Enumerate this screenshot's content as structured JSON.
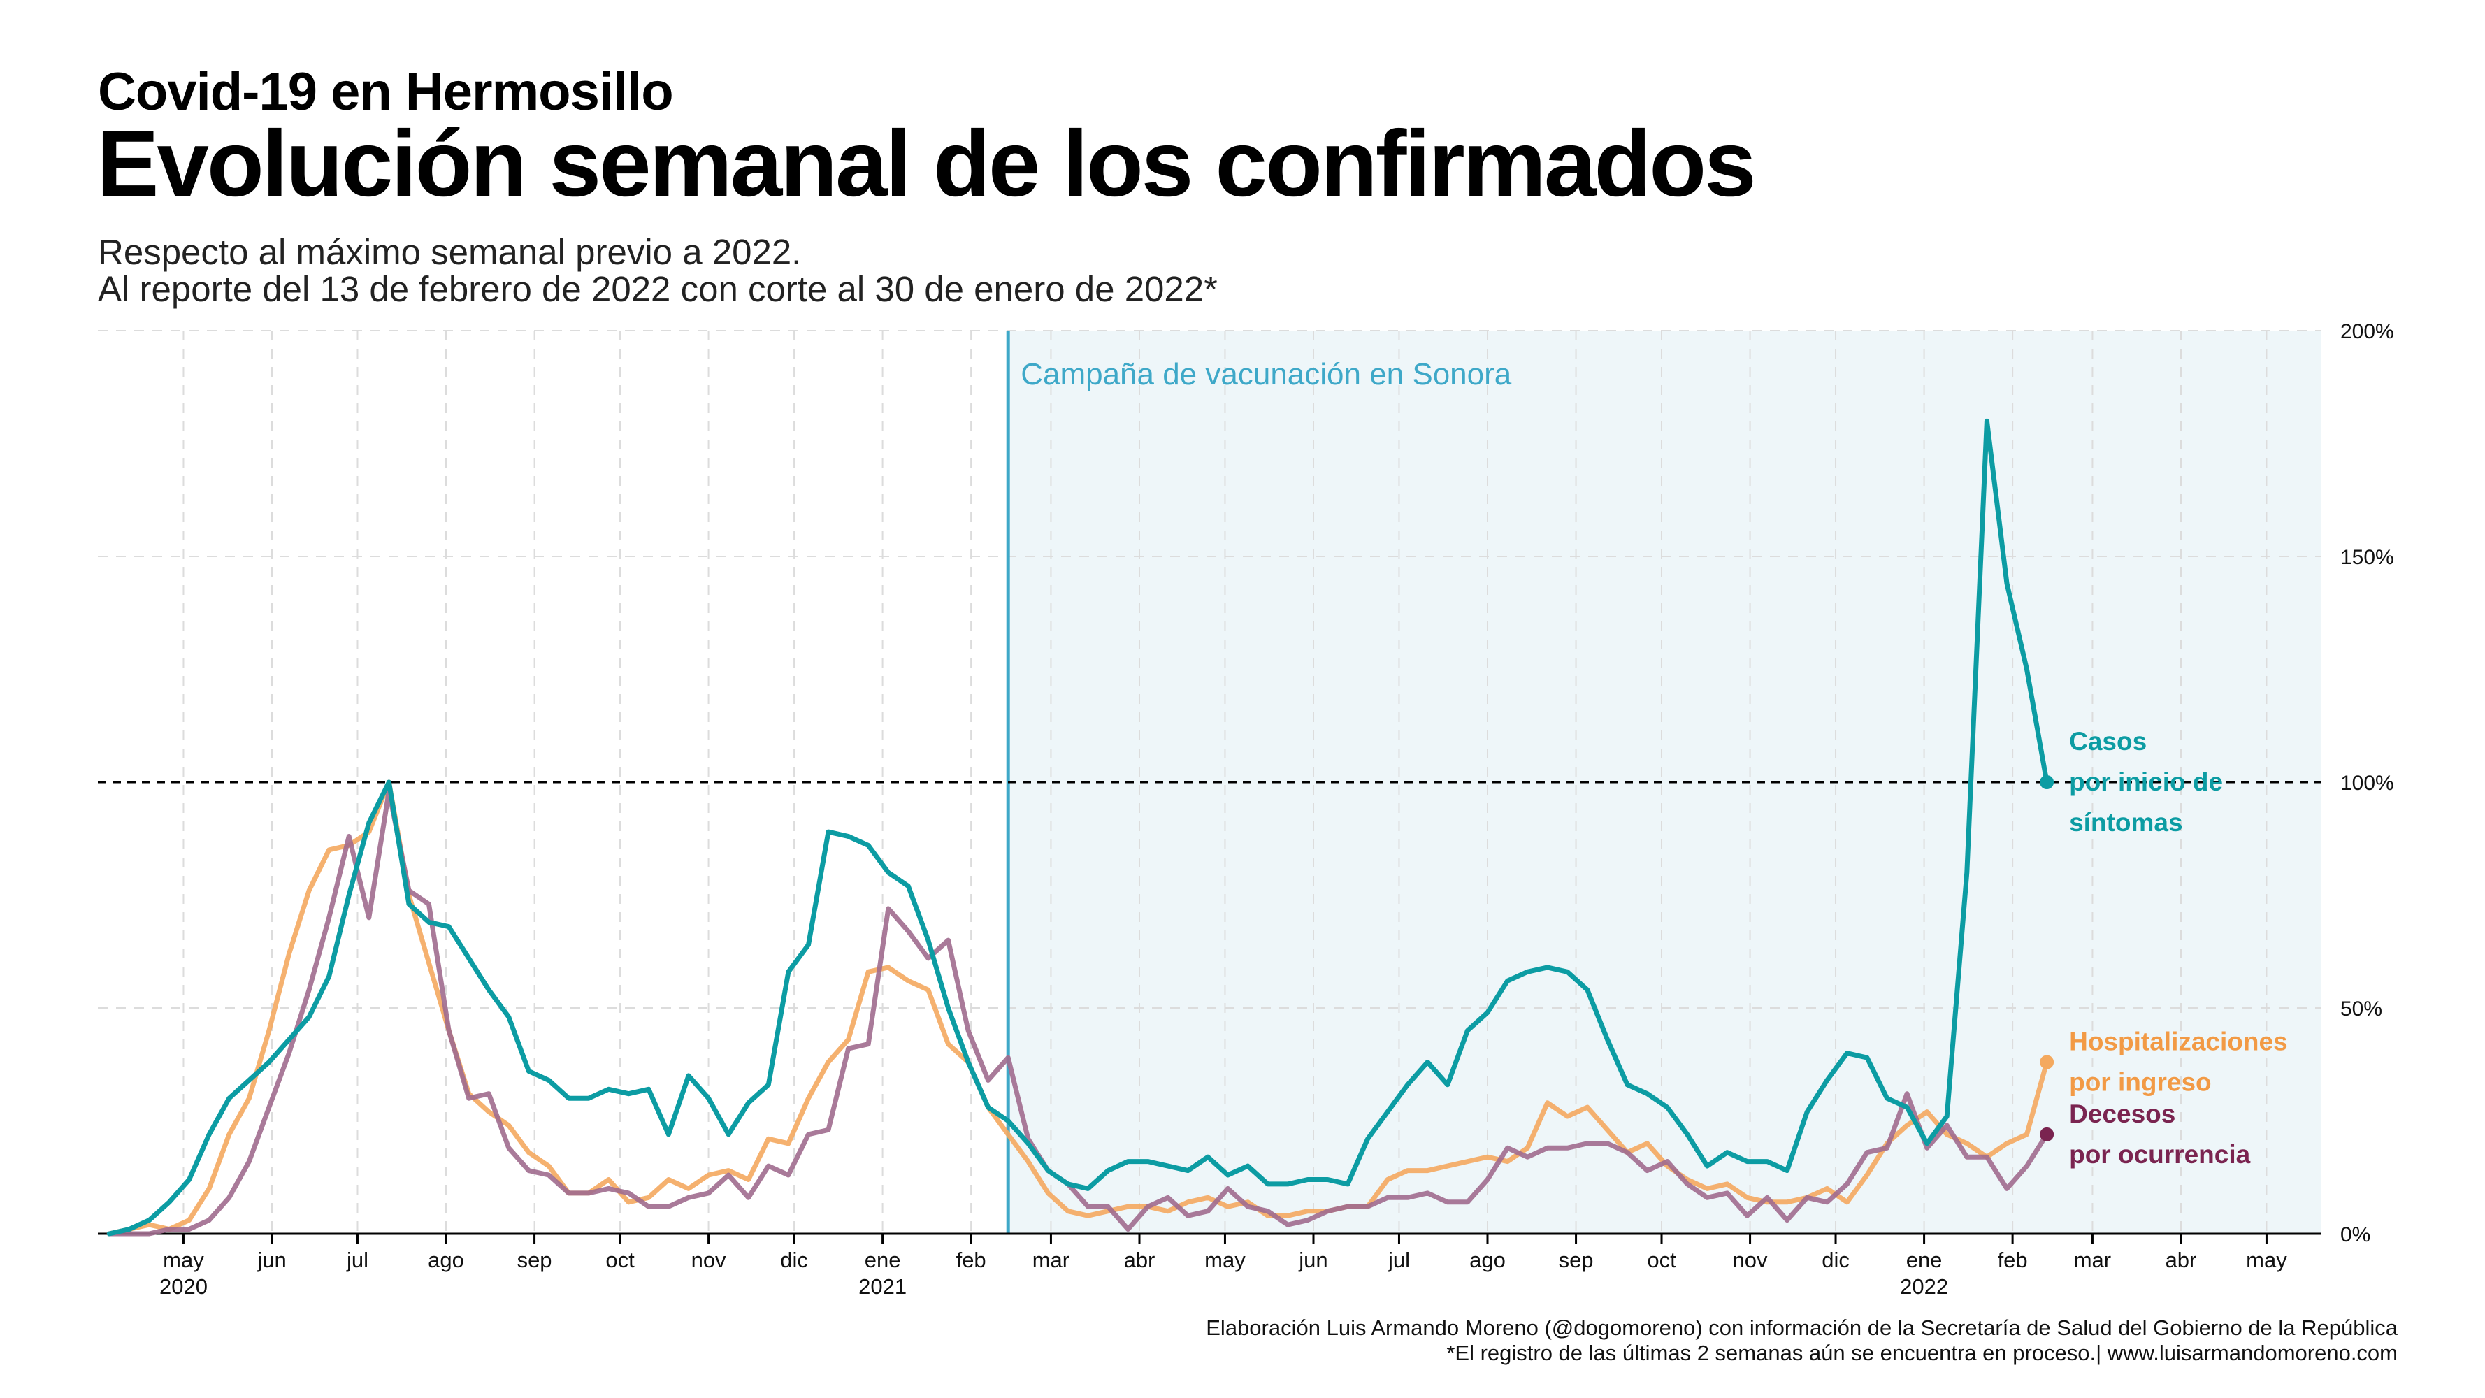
{
  "header": {
    "kicker": "Covid-19 en Hermosillo",
    "title": "Evolución semanal de los confirmados",
    "subtitle_1": "Respecto al máximo semanal previo a 2022.",
    "subtitle_2": "Al reporte del 13 de febrero de 2022 con corte al 30 de enero de 2022*"
  },
  "footer": {
    "line_1": "Elaboración Luis Armando Moreno (@dogomoreno) con información de la Secretaría de Salud del Gobierno de la República",
    "line_2": "*El registro de las últimas 2 semanas aún se encuentra en proceso.| www.luisarmandomoreno.com"
  },
  "chart_data": {
    "type": "line",
    "x_start": "2020-04-05",
    "x_step_weeks": 1,
    "xlim": [
      "2020-04-01",
      "2022-05-20"
    ],
    "ylim": [
      0,
      200
    ],
    "y_ticks": [
      0,
      50,
      100,
      150,
      200
    ],
    "y_tick_labels": [
      "0%",
      "50%",
      "100%",
      "150%",
      "200%"
    ],
    "y_axis_position": "right",
    "x_ticks": [
      {
        "date": "2020-05-01",
        "label": "may",
        "year": "2020"
      },
      {
        "date": "2020-06-01",
        "label": "jun"
      },
      {
        "date": "2020-07-01",
        "label": "jul"
      },
      {
        "date": "2020-08-01",
        "label": "ago"
      },
      {
        "date": "2020-09-01",
        "label": "sep"
      },
      {
        "date": "2020-10-01",
        "label": "oct"
      },
      {
        "date": "2020-11-01",
        "label": "nov"
      },
      {
        "date": "2020-12-01",
        "label": "dic"
      },
      {
        "date": "2021-01-01",
        "label": "ene",
        "year": "2021"
      },
      {
        "date": "2021-02-01",
        "label": "feb"
      },
      {
        "date": "2021-03-01",
        "label": "mar"
      },
      {
        "date": "2021-04-01",
        "label": "abr"
      },
      {
        "date": "2021-05-01",
        "label": "may"
      },
      {
        "date": "2021-06-01",
        "label": "jun"
      },
      {
        "date": "2021-07-01",
        "label": "jul"
      },
      {
        "date": "2021-08-01",
        "label": "ago"
      },
      {
        "date": "2021-09-01",
        "label": "sep"
      },
      {
        "date": "2021-10-01",
        "label": "oct"
      },
      {
        "date": "2021-11-01",
        "label": "nov"
      },
      {
        "date": "2021-12-01",
        "label": "dic"
      },
      {
        "date": "2022-01-01",
        "label": "ene",
        "year": "2022"
      },
      {
        "date": "2022-02-01",
        "label": "feb"
      },
      {
        "date": "2022-03-01",
        "label": "mar"
      },
      {
        "date": "2022-04-01",
        "label": "abr"
      },
      {
        "date": "2022-05-01",
        "label": "may"
      }
    ],
    "reference_line": {
      "y": 100,
      "style": "dashed"
    },
    "vaccination": {
      "start": "2021-02-14",
      "label": "Campaña de vacunación en Sonora",
      "shade": "#eef6f9",
      "line_color": "#3ea8c8"
    },
    "grid": true,
    "series": [
      {
        "name_lines": [
          "Casos",
          "por inicio de",
          "síntomas"
        ],
        "color": "#0c9ca3",
        "values": [
          0,
          1,
          3,
          7,
          12,
          22,
          30,
          34,
          38,
          43,
          48,
          57,
          75,
          91,
          100,
          73,
          69,
          68,
          61,
          54,
          48,
          36,
          34,
          30,
          30,
          32,
          31,
          32,
          22,
          35,
          30,
          22,
          29,
          33,
          58,
          64,
          89,
          88,
          86,
          80,
          77,
          65,
          50,
          38,
          28,
          25,
          20,
          14,
          11,
          10,
          14,
          16,
          16,
          15,
          14,
          17,
          13,
          15,
          11,
          11,
          12,
          12,
          11,
          21,
          27,
          33,
          38,
          33,
          45,
          49,
          56,
          58,
          59,
          58,
          54,
          43,
          33,
          31,
          28,
          22,
          15,
          18,
          16,
          16,
          14,
          27,
          34,
          40,
          39,
          30,
          28,
          20,
          26,
          80,
          180,
          144,
          125,
          100
        ],
        "last_value_label": "100%"
      },
      {
        "name_lines": [
          "Hospitalizaciones",
          "por ingreso"
        ],
        "color": "#f4a95f",
        "values": [
          0,
          1,
          2,
          1,
          3,
          10,
          22,
          30,
          45,
          62,
          76,
          85,
          86,
          89,
          100,
          75,
          60,
          45,
          31,
          27,
          24,
          18,
          15,
          9,
          9,
          12,
          7,
          8,
          12,
          10,
          13,
          14,
          12,
          21,
          20,
          30,
          38,
          43,
          58,
          59,
          56,
          54,
          42,
          38,
          28,
          22,
          16,
          9,
          5,
          4,
          5,
          6,
          6,
          5,
          7,
          8,
          6,
          7,
          4,
          4,
          5,
          5,
          6,
          6,
          12,
          14,
          14,
          15,
          16,
          17,
          16,
          19,
          29,
          26,
          28,
          23,
          18,
          20,
          15,
          12,
          10,
          11,
          8,
          7,
          7,
          8,
          10,
          7,
          13,
          20,
          24,
          27,
          22,
          20,
          17,
          20,
          22,
          38
        ],
        "last_value_label": "38%"
      },
      {
        "name_lines": [
          "Decesos",
          "por ocurrencia"
        ],
        "color": "#a06b8e",
        "values": [
          0,
          0,
          0,
          1,
          1,
          3,
          8,
          16,
          28,
          40,
          54,
          70,
          88,
          70,
          98,
          76,
          73,
          45,
          30,
          31,
          19,
          14,
          13,
          9,
          9,
          10,
          9,
          6,
          6,
          8,
          9,
          13,
          8,
          15,
          13,
          22,
          23,
          41,
          42,
          72,
          67,
          61,
          65,
          45,
          34,
          39,
          21,
          14,
          11,
          6,
          6,
          1,
          6,
          8,
          4,
          5,
          10,
          6,
          5,
          2,
          3,
          5,
          6,
          6,
          8,
          8,
          9,
          7,
          7,
          12,
          19,
          17,
          19,
          19,
          20,
          20,
          18,
          14,
          16,
          11,
          8,
          9,
          4,
          8,
          3,
          8,
          7,
          11,
          18,
          19,
          31,
          19,
          24,
          17,
          17,
          10,
          15,
          22
        ],
        "dot_color": "#7a2450",
        "last_value_label": "22%"
      }
    ]
  }
}
